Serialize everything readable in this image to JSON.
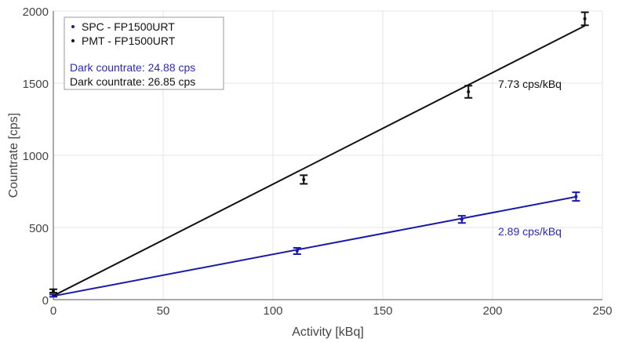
{
  "chart_data": {
    "type": "scatter",
    "xlabel": "Activity [kBq]",
    "ylabel": "Countrate [cps]",
    "xlim": [
      0,
      250
    ],
    "ylim": [
      0,
      2000
    ],
    "xticks": [
      0,
      50,
      100,
      150,
      200,
      250
    ],
    "yticks": [
      0,
      500,
      1000,
      1500,
      2000
    ],
    "grid": true,
    "legend_position": "top-left",
    "series": [
      {
        "name": "SPC - FP1500URT",
        "color": "#1a1aa8",
        "x": [
          0,
          111,
          186,
          238
        ],
        "y": [
          28,
          337,
          556,
          714
        ],
        "err": [
          8,
          22,
          25,
          30
        ],
        "fit": {
          "intercept": 24.88,
          "slope": 2.89,
          "x_end": 238
        },
        "dark_label": "Dark countrate: 24.88 cps",
        "slope_label": "2.89 cps/kBq"
      },
      {
        "name": "PMT - FP1500URT",
        "color": "#111111",
        "x": [
          0,
          114,
          189,
          242
        ],
        "y": [
          60,
          832,
          1440,
          1946
        ],
        "err": [
          12,
          30,
          42,
          45
        ],
        "fit": {
          "intercept": 26.85,
          "slope": 7.73,
          "x_end": 242
        },
        "dark_label": "Dark countrate: 26.85 cps",
        "slope_label": "7.73 cps/kBq"
      }
    ]
  }
}
